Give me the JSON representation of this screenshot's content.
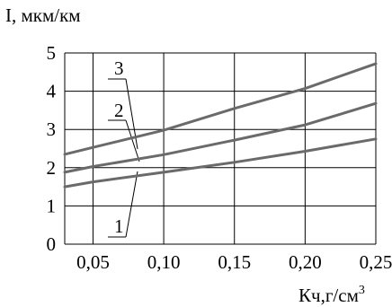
{
  "chart_data": {
    "type": "line",
    "ylabel": "I, мкм/км",
    "xlabel": "Кч,г/см",
    "xlabel_sup": "3",
    "xlim": [
      0.03,
      0.25
    ],
    "ylim": [
      0,
      5
    ],
    "xticks": [
      0.05,
      0.1,
      0.15,
      0.2,
      0.25
    ],
    "xtick_labels": [
      "0,05",
      "0,10",
      "0,15",
      "0,20",
      "0,25"
    ],
    "yticks": [
      0,
      1,
      2,
      3,
      4,
      5
    ],
    "ytick_labels": [
      "0",
      "1",
      "2",
      "3",
      "4",
      "5"
    ],
    "grid": true,
    "series": [
      {
        "name": "1",
        "x": [
          0.03,
          0.05,
          0.1,
          0.15,
          0.2,
          0.25
        ],
        "y": [
          1.5,
          1.63,
          1.88,
          2.14,
          2.43,
          2.75
        ]
      },
      {
        "name": "2",
        "x": [
          0.03,
          0.05,
          0.1,
          0.15,
          0.2,
          0.25
        ],
        "y": [
          1.88,
          2.03,
          2.34,
          2.72,
          3.12,
          3.68
        ]
      },
      {
        "name": "3",
        "x": [
          0.03,
          0.05,
          0.1,
          0.15,
          0.2,
          0.25
        ],
        "y": [
          2.35,
          2.53,
          2.98,
          3.55,
          4.07,
          4.72
        ]
      }
    ],
    "colors": {
      "curve": "#6a6a6a",
      "grid": "#000000",
      "text": "#000000"
    }
  }
}
